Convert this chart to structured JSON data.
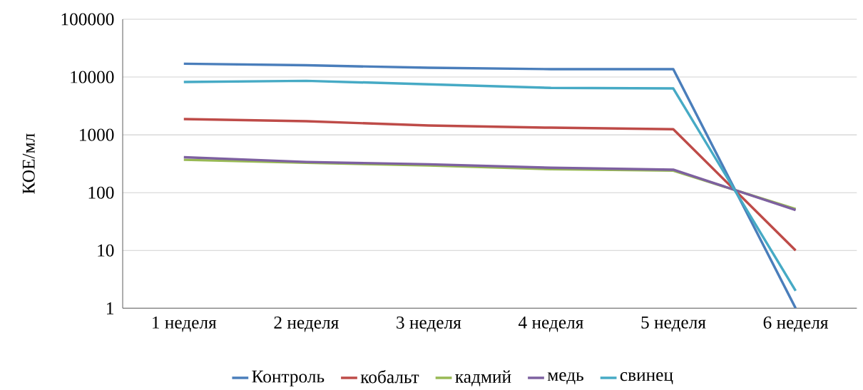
{
  "chart_data": {
    "type": "line",
    "ylabel": "КОЕ/мл",
    "log": true,
    "grid": "y",
    "legend": "bottom",
    "categories": [
      "1 неделя",
      "2 неделя",
      "3 неделя",
      "4 неделя",
      "5 неделя",
      "6 неделя"
    ],
    "ylim": [
      1,
      100000
    ],
    "yticks": [
      1,
      10,
      100,
      1000,
      10000,
      100000
    ],
    "series": [
      {
        "name": "Контроль",
        "color": "#4a7ebb",
        "values": [
          17000,
          16000,
          14500,
          13700,
          13700,
          1
        ]
      },
      {
        "name": "кобальт",
        "color": "#be4b48",
        "values": [
          1870,
          1720,
          1450,
          1330,
          1250,
          10
        ]
      },
      {
        "name": "кадмий",
        "color": "#98b954",
        "values": [
          370,
          330,
          295,
          255,
          240,
          52
        ]
      },
      {
        "name": "медь",
        "color": "#7d60a0",
        "values": [
          410,
          340,
          310,
          270,
          250,
          50
        ]
      },
      {
        "name": "свинец",
        "color": "#46aac5",
        "values": [
          8200,
          8600,
          7500,
          6500,
          6350,
          2
        ]
      }
    ]
  }
}
